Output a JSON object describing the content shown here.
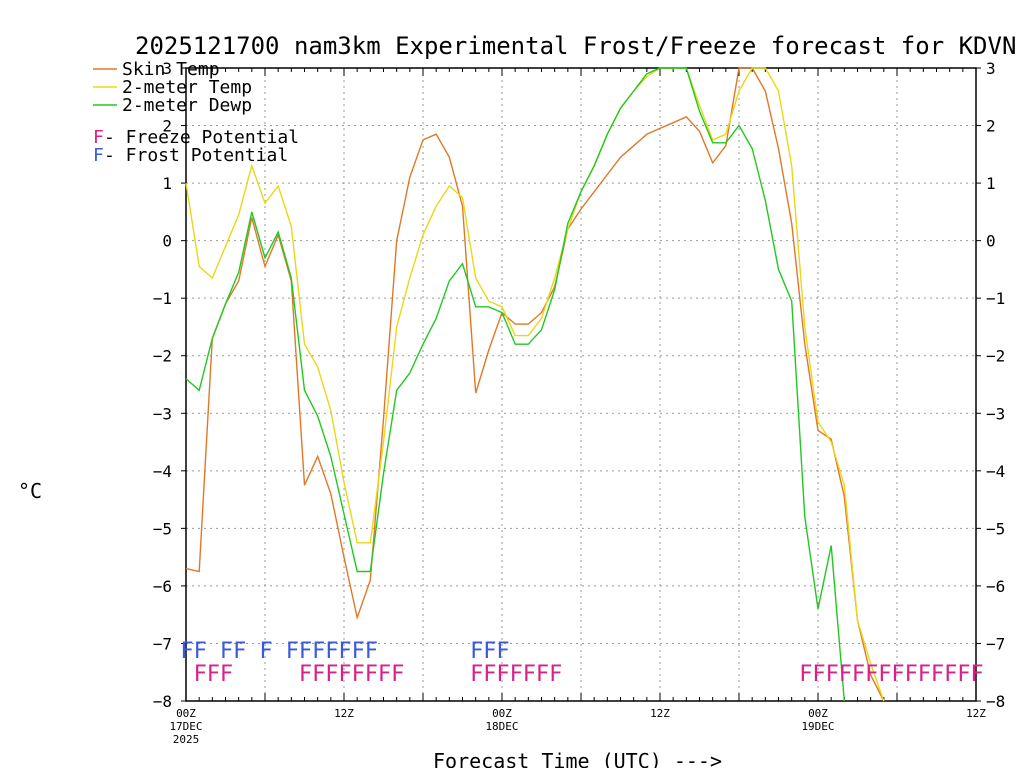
{
  "chart_data": {
    "type": "line",
    "title": "2025121700 nam3km Experimental Frost/Freeze forecast for KDVN",
    "xlabel": "Forecast Time (UTC) --->",
    "ylabel": "°C",
    "ylim": [
      -8,
      3
    ],
    "xlim": [
      0,
      60
    ],
    "yticks": [
      3,
      2,
      1,
      0,
      -1,
      -2,
      -3,
      -4,
      -5,
      -6,
      -7,
      -8
    ],
    "yticks_right": [
      "3",
      "2",
      "1",
      "0",
      "−1",
      "−2",
      "−3",
      "−4",
      "−5",
      "−6",
      "−7",
      "−8"
    ],
    "xticks": [
      {
        "x": 0,
        "label": "00Z",
        "sub": "17DEC",
        "sub2": "2025"
      },
      {
        "x": 12,
        "label": "12Z",
        "sub": "",
        "sub2": ""
      },
      {
        "x": 24,
        "label": "00Z",
        "sub": "18DEC",
        "sub2": ""
      },
      {
        "x": 36,
        "label": "12Z",
        "sub": "",
        "sub2": ""
      },
      {
        "x": 48,
        "label": "00Z",
        "sub": "19DEC",
        "sub2": ""
      },
      {
        "x": 60,
        "label": "12Z",
        "sub": "",
        "sub2": ""
      }
    ],
    "series": [
      {
        "name": "Skin Temp",
        "color": "#e07828",
        "points": [
          [
            0,
            -5.7
          ],
          [
            1,
            -5.75
          ],
          [
            2,
            -1.7
          ],
          [
            3,
            -1.1
          ],
          [
            4,
            -0.7
          ],
          [
            5,
            0.4
          ],
          [
            6,
            -0.45
          ],
          [
            7,
            0.1
          ],
          [
            8,
            -0.7
          ],
          [
            9,
            -4.25
          ],
          [
            10,
            -3.75
          ],
          [
            11,
            -4.4
          ],
          [
            12,
            -5.5
          ],
          [
            13,
            -6.55
          ],
          [
            14,
            -5.9
          ],
          [
            15,
            -3.1
          ],
          [
            16,
            0
          ],
          [
            17,
            1.1
          ],
          [
            18,
            1.75
          ],
          [
            19,
            1.85
          ],
          [
            20,
            1.45
          ],
          [
            21,
            0.6
          ],
          [
            22,
            -2.65
          ],
          [
            23,
            -1.9
          ],
          [
            24,
            -1.25
          ],
          [
            25,
            -1.45
          ],
          [
            26,
            -1.45
          ],
          [
            27,
            -1.25
          ],
          [
            28,
            -0.8
          ],
          [
            29,
            0.2
          ],
          [
            30,
            0.55
          ],
          [
            31,
            0.85
          ],
          [
            32,
            1.15
          ],
          [
            33,
            1.45
          ],
          [
            34,
            1.65
          ],
          [
            35,
            1.85
          ],
          [
            36,
            1.95
          ],
          [
            37,
            2.05
          ],
          [
            38,
            2.15
          ],
          [
            39,
            1.9
          ],
          [
            40,
            1.35
          ],
          [
            41,
            1.65
          ],
          [
            42,
            3.0
          ],
          [
            43,
            3.0
          ],
          [
            44,
            2.6
          ],
          [
            45,
            1.6
          ],
          [
            46,
            0.3
          ],
          [
            47,
            -1.8
          ],
          [
            48,
            -3.3
          ],
          [
            49,
            -3.45
          ],
          [
            50,
            -4.45
          ],
          [
            51,
            -6.6
          ],
          [
            52,
            -7.55
          ],
          [
            53,
            -8.0
          ]
        ]
      },
      {
        "name": "2-meter Temp",
        "color": "#e8d818",
        "points": [
          [
            0,
            1.0
          ],
          [
            1,
            -0.45
          ],
          [
            2,
            -0.65
          ],
          [
            3,
            -0.1
          ],
          [
            4,
            0.45
          ],
          [
            5,
            1.3
          ],
          [
            6,
            0.65
          ],
          [
            7,
            0.95
          ],
          [
            8,
            0.25
          ],
          [
            9,
            -1.8
          ],
          [
            10,
            -2.2
          ],
          [
            11,
            -2.95
          ],
          [
            12,
            -4.2
          ],
          [
            13,
            -5.25
          ],
          [
            14,
            -5.25
          ],
          [
            15,
            -3.5
          ],
          [
            16,
            -1.5
          ],
          [
            17,
            -0.65
          ],
          [
            18,
            0.1
          ],
          [
            19,
            0.6
          ],
          [
            20,
            0.95
          ],
          [
            21,
            0.75
          ],
          [
            22,
            -0.65
          ],
          [
            23,
            -1.05
          ],
          [
            24,
            -1.15
          ],
          [
            25,
            -1.65
          ],
          [
            26,
            -1.65
          ],
          [
            27,
            -1.35
          ],
          [
            28,
            -0.65
          ],
          [
            29,
            0.2
          ],
          [
            30,
            0.85
          ],
          [
            31,
            1.3
          ],
          [
            32,
            1.85
          ],
          [
            33,
            2.3
          ],
          [
            34,
            2.6
          ],
          [
            35,
            2.85
          ],
          [
            36,
            3.0
          ],
          [
            37,
            3.0
          ],
          [
            38,
            3.0
          ],
          [
            39,
            2.35
          ],
          [
            40,
            1.75
          ],
          [
            41,
            1.85
          ],
          [
            42,
            2.6
          ],
          [
            43,
            3.0
          ],
          [
            44,
            3.0
          ],
          [
            45,
            2.6
          ],
          [
            46,
            1.3
          ],
          [
            47,
            -1.5
          ],
          [
            48,
            -3.15
          ],
          [
            49,
            -3.5
          ],
          [
            50,
            -4.25
          ],
          [
            51,
            -6.6
          ],
          [
            52,
            -7.35
          ],
          [
            53,
            -8.0
          ]
        ]
      },
      {
        "name": "2-meter Dewp",
        "color": "#22c822",
        "points": [
          [
            0,
            -2.4
          ],
          [
            1,
            -2.6
          ],
          [
            2,
            -1.7
          ],
          [
            3,
            -1.1
          ],
          [
            4,
            -0.55
          ],
          [
            5,
            0.5
          ],
          [
            6,
            -0.3
          ],
          [
            7,
            0.15
          ],
          [
            8,
            -0.65
          ],
          [
            9,
            -2.6
          ],
          [
            10,
            -3.05
          ],
          [
            11,
            -3.75
          ],
          [
            12,
            -4.75
          ],
          [
            13,
            -5.75
          ],
          [
            14,
            -5.75
          ],
          [
            15,
            -4.05
          ],
          [
            16,
            -2.6
          ],
          [
            17,
            -2.3
          ],
          [
            18,
            -1.8
          ],
          [
            19,
            -1.35
          ],
          [
            20,
            -0.7
          ],
          [
            21,
            -0.4
          ],
          [
            22,
            -1.15
          ],
          [
            23,
            -1.15
          ],
          [
            24,
            -1.25
          ],
          [
            25,
            -1.8
          ],
          [
            26,
            -1.8
          ],
          [
            27,
            -1.55
          ],
          [
            28,
            -0.85
          ],
          [
            29,
            0.3
          ],
          [
            30,
            0.85
          ],
          [
            31,
            1.3
          ],
          [
            32,
            1.85
          ],
          [
            33,
            2.3
          ],
          [
            34,
            2.6
          ],
          [
            35,
            2.9
          ],
          [
            36,
            3.0
          ],
          [
            37,
            3.0
          ],
          [
            38,
            3.0
          ],
          [
            39,
            2.25
          ],
          [
            40,
            1.7
          ],
          [
            41,
            1.7
          ],
          [
            42,
            2.0
          ],
          [
            43,
            1.6
          ],
          [
            44,
            0.7
          ],
          [
            45,
            -0.5
          ],
          [
            46,
            -1.05
          ],
          [
            47,
            -4.8
          ],
          [
            48,
            -6.4
          ],
          [
            49,
            -5.3
          ],
          [
            50,
            -8.0
          ]
        ]
      }
    ],
    "legend": [
      {
        "label": "Skin Temp",
        "color": "#e07828"
      },
      {
        "label": "2-meter Temp",
        "color": "#e8d818"
      },
      {
        "label": "2-meter Dewp",
        "color": "#22c822"
      }
    ],
    "potential_legend": [
      {
        "letter": "F",
        "text": " - Freeze Potential",
        "color": "#d8208a"
      },
      {
        "letter": "F",
        "text": " - Frost Potential",
        "color": "#3a5ad8"
      }
    ],
    "frost_flags": [
      0,
      1,
      3,
      4,
      6,
      8,
      9,
      10,
      11,
      12,
      13,
      14,
      22,
      23,
      24
    ],
    "freeze_flags": [
      1,
      2,
      3,
      9,
      10,
      11,
      12,
      13,
      14,
      15,
      16,
      22,
      23,
      24,
      25,
      26,
      27,
      28,
      47,
      48,
      49,
      50,
      51,
      52,
      53,
      54,
      55,
      56,
      57,
      58,
      59,
      60
    ],
    "frost_color": "#3a5ad8",
    "freeze_color": "#d8208a"
  }
}
